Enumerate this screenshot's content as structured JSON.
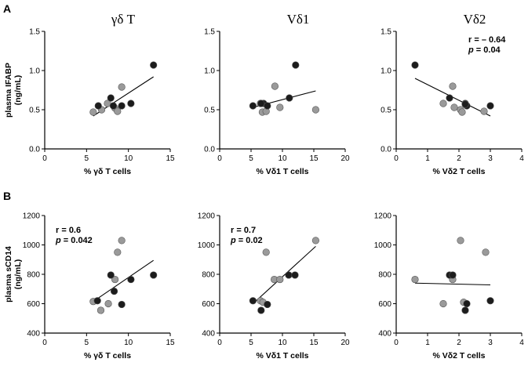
{
  "panel_labels": [
    "A",
    "B"
  ],
  "colors": {
    "dark": "#1c1c1c",
    "gray": "#9a9a9a",
    "axis": "#000000"
  },
  "chart_data": [
    {
      "type": "scatter",
      "row": 0,
      "col": 0,
      "title": "γδ T",
      "xlabel": "% γδ T cells",
      "ylabel": [
        "plasma IFABP",
        "(ng/mL)"
      ],
      "xlim": [
        0,
        15
      ],
      "xticks": [
        "0",
        "5",
        "10",
        "15"
      ],
      "ylim": [
        0,
        1.5
      ],
      "yticks": [
        "0.0",
        "0.5",
        "1.0",
        "1.5"
      ],
      "stats": [],
      "fit": {
        "x": [
          5.8,
          13
        ],
        "y": [
          0.42,
          0.92
        ]
      },
      "series": [
        {
          "color": "gray",
          "points": [
            [
              5.8,
              0.47
            ],
            [
              6.8,
              0.5
            ],
            [
              7.5,
              0.58
            ],
            [
              8.4,
              0.52
            ],
            [
              8.7,
              0.48
            ],
            [
              9.2,
              0.79
            ]
          ]
        },
        {
          "color": "dark",
          "points": [
            [
              6.4,
              0.55
            ],
            [
              7.9,
              0.65
            ],
            [
              8.2,
              0.55
            ],
            [
              9.2,
              0.55
            ],
            [
              10.3,
              0.58
            ],
            [
              13.0,
              1.07
            ]
          ]
        }
      ]
    },
    {
      "type": "scatter",
      "row": 0,
      "col": 1,
      "title": "Vδ1",
      "xlabel": "% Vδ1 T cells",
      "ylabel": [],
      "xlim": [
        0,
        20
      ],
      "xticks": [
        "0",
        "5",
        "10",
        "15",
        "20"
      ],
      "ylim": [
        0,
        1.5
      ],
      "yticks": [
        "0.0",
        "0.5",
        "1.0",
        "1.5"
      ],
      "stats": [],
      "fit": {
        "x": [
          5.3,
          15.3
        ],
        "y": [
          0.53,
          0.74
        ]
      },
      "series": [
        {
          "color": "gray",
          "points": [
            [
              6.5,
              0.58
            ],
            [
              6.8,
              0.47
            ],
            [
              7.4,
              0.48
            ],
            [
              8.8,
              0.8
            ],
            [
              9.6,
              0.53
            ],
            [
              15.3,
              0.5
            ]
          ]
        },
        {
          "color": "dark",
          "points": [
            [
              5.3,
              0.55
            ],
            [
              7.0,
              0.58
            ],
            [
              7.6,
              0.55
            ],
            [
              11.1,
              0.65
            ],
            [
              12.1,
              1.07
            ],
            [
              6.6,
              0.58
            ]
          ]
        }
      ]
    },
    {
      "type": "scatter",
      "row": 0,
      "col": 2,
      "title": "Vδ2",
      "xlabel": "% Vδ2 T cells",
      "ylabel": [],
      "xlim": [
        0,
        4
      ],
      "xticks": [
        "0",
        "1",
        "2",
        "3",
        "4"
      ],
      "ylim": [
        0,
        1.5
      ],
      "yticks": [
        "0.0",
        "0.5",
        "1.0",
        "1.5"
      ],
      "stats": [
        {
          "label": "r",
          "value": "= – 0.64",
          "italic": false
        },
        {
          "label": "p",
          "value": "= 0.04",
          "italic": true
        }
      ],
      "fit": {
        "x": [
          0.6,
          3.0
        ],
        "y": [
          0.9,
          0.42
        ]
      },
      "series": [
        {
          "color": "gray",
          "points": [
            [
              1.5,
              0.58
            ],
            [
              1.8,
              0.8
            ],
            [
              1.85,
              0.53
            ],
            [
              2.05,
              0.5
            ],
            [
              2.1,
              0.47
            ],
            [
              2.8,
              0.48
            ]
          ]
        },
        {
          "color": "dark",
          "points": [
            [
              0.6,
              1.07
            ],
            [
              1.7,
              0.65
            ],
            [
              2.2,
              0.58
            ],
            [
              2.25,
              0.55
            ],
            [
              3.0,
              0.55
            ],
            [
              2.2,
              0.57
            ]
          ]
        }
      ]
    },
    {
      "type": "scatter",
      "row": 1,
      "col": 0,
      "title": "",
      "xlabel": "% γδ T cells",
      "ylabel": [
        "plasma sCD14",
        "(ng/mL)"
      ],
      "xlim": [
        0,
        15
      ],
      "xticks": [
        "0",
        "5",
        "10",
        "15"
      ],
      "ylim": [
        400,
        1200
      ],
      "yticks": [
        "400",
        "600",
        "800",
        "1000",
        "1200"
      ],
      "stats": [
        {
          "label": "r",
          "value": "= 0.6",
          "italic": false
        },
        {
          "label": "p",
          "value": "= 0.042",
          "italic": true
        }
      ],
      "fit": {
        "x": [
          5.8,
          13
        ],
        "y": [
          615,
          895
        ]
      },
      "series": [
        {
          "color": "gray",
          "points": [
            [
              5.8,
              615
            ],
            [
              6.7,
              555
            ],
            [
              7.6,
              600
            ],
            [
              8.4,
              765
            ],
            [
              8.7,
              950
            ],
            [
              9.2,
              1030
            ]
          ]
        },
        {
          "color": "dark",
          "points": [
            [
              6.3,
              620
            ],
            [
              7.9,
              795
            ],
            [
              8.3,
              685
            ],
            [
              9.2,
              595
            ],
            [
              10.3,
              765
            ],
            [
              13.0,
              795
            ]
          ]
        }
      ]
    },
    {
      "type": "scatter",
      "row": 1,
      "col": 1,
      "title": "",
      "xlabel": "% Vδ1 T cells",
      "ylabel": [],
      "xlim": [
        0,
        20
      ],
      "xticks": [
        "0",
        "5",
        "10",
        "15",
        "20"
      ],
      "ylim": [
        400,
        1200
      ],
      "yticks": [
        "400",
        "600",
        "800",
        "1000",
        "1200"
      ],
      "stats": [
        {
          "label": "r",
          "value": "= 0.7",
          "italic": false
        },
        {
          "label": "p",
          "value": "= 0.02",
          "italic": true
        }
      ],
      "fit": {
        "x": [
          5.3,
          15.3
        ],
        "y": [
          600,
          990
        ]
      },
      "series": [
        {
          "color": "gray",
          "points": [
            [
              6.5,
              620
            ],
            [
              6.9,
              610
            ],
            [
              7.4,
              950
            ],
            [
              8.7,
              765
            ],
            [
              9.6,
              765
            ],
            [
              15.3,
              1030
            ]
          ]
        },
        {
          "color": "dark",
          "points": [
            [
              5.3,
              620
            ],
            [
              6.6,
              555
            ],
            [
              7.6,
              595
            ],
            [
              11.0,
              795
            ],
            [
              12.0,
              795
            ]
          ]
        }
      ]
    },
    {
      "type": "scatter",
      "row": 1,
      "col": 2,
      "title": "",
      "xlabel": "% Vδ2 T cells",
      "ylabel": [],
      "xlim": [
        0,
        4
      ],
      "xticks": [
        "0",
        "1",
        "2",
        "3",
        "4"
      ],
      "ylim": [
        400,
        1200
      ],
      "yticks": [
        "400",
        "600",
        "800",
        "1000",
        "1200"
      ],
      "stats": [],
      "fit": {
        "x": [
          0.6,
          3.0
        ],
        "y": [
          740,
          728
        ]
      },
      "series": [
        {
          "color": "gray",
          "points": [
            [
              0.6,
              765
            ],
            [
              1.5,
              600
            ],
            [
              1.8,
              765
            ],
            [
              2.05,
              1030
            ],
            [
              2.15,
              610
            ],
            [
              2.85,
              950
            ]
          ]
        },
        {
          "color": "dark",
          "points": [
            [
              1.7,
              795
            ],
            [
              1.8,
              795
            ],
            [
              2.2,
              555
            ],
            [
              2.25,
              600
            ],
            [
              3.0,
              620
            ]
          ]
        }
      ]
    }
  ]
}
